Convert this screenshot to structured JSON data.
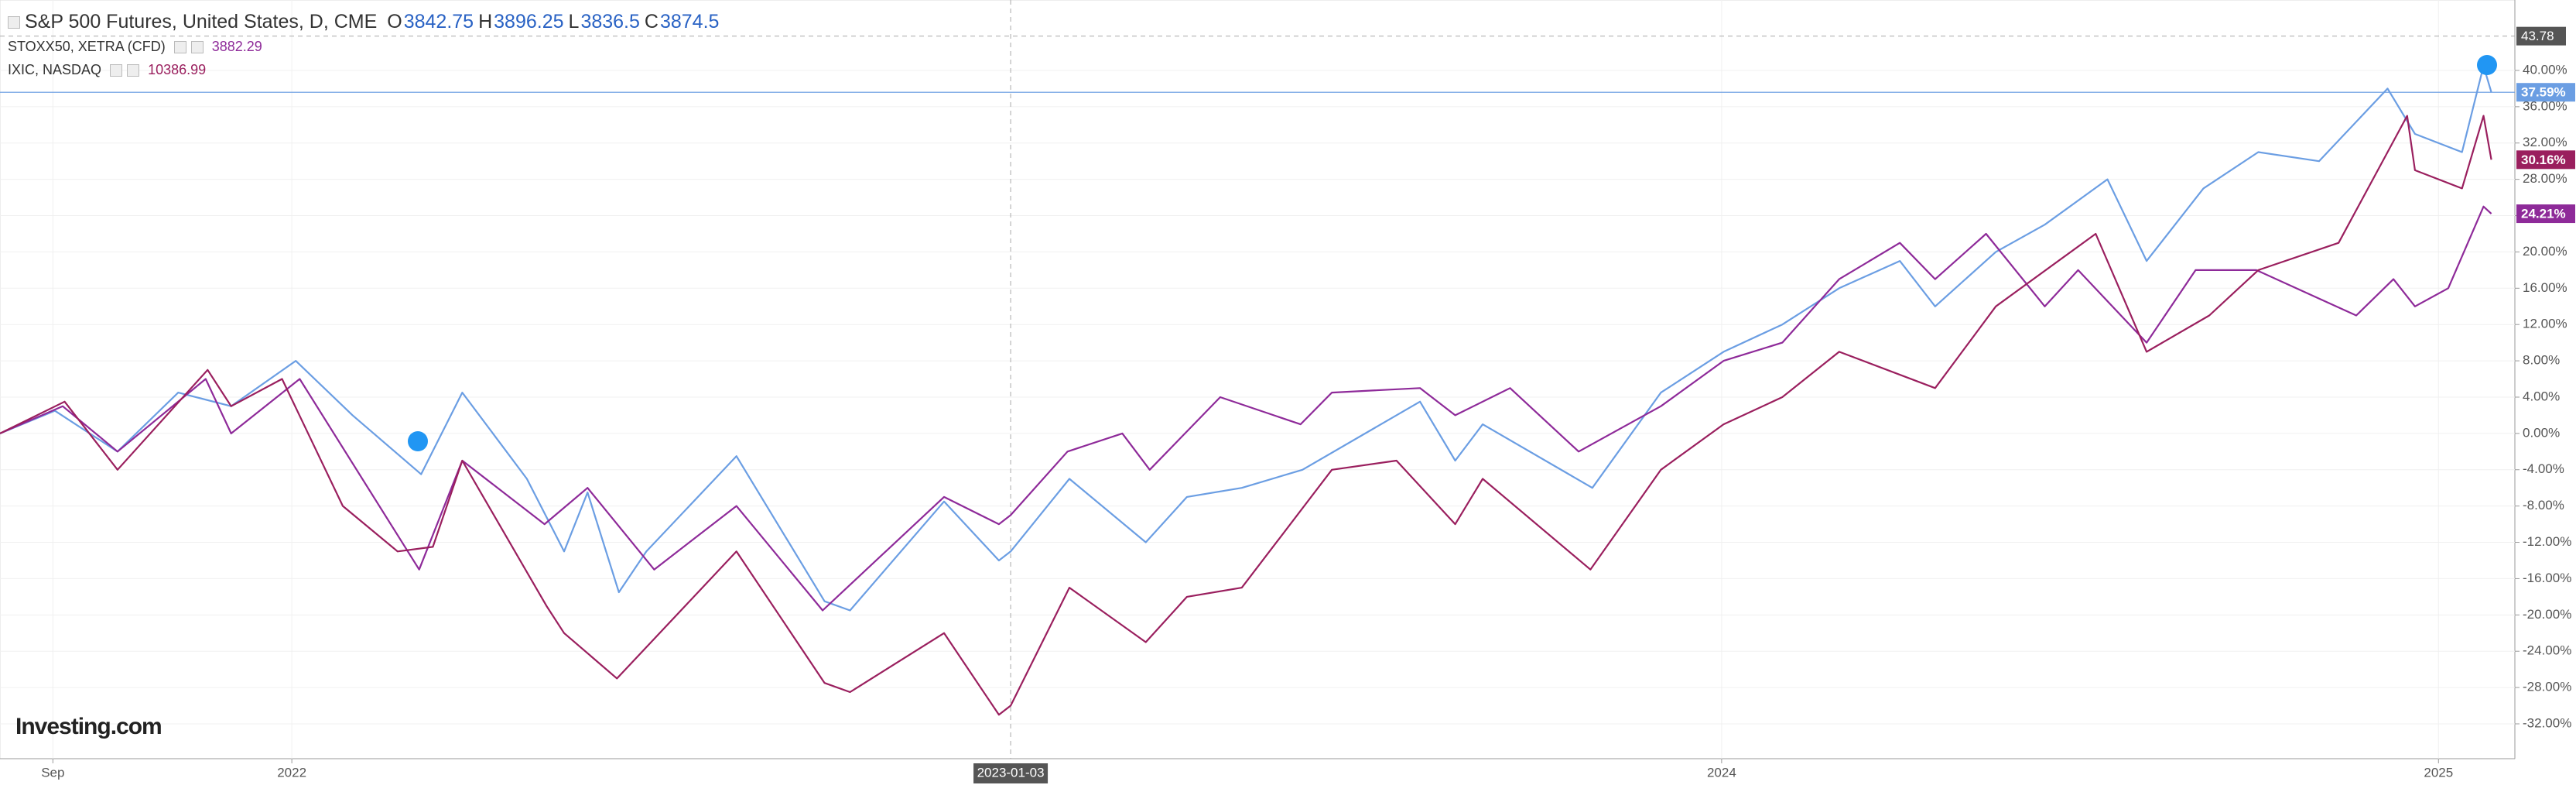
{
  "chart_data": {
    "type": "line",
    "series": [
      {
        "name": "S&P 500 Futures, United States, D, CME",
        "color": "#6b9ee3",
        "ohlc": [
          {
            "label": "O",
            "value": 3842.75
          },
          {
            "label": "H",
            "value": 3896.25
          },
          {
            "label": "L",
            "value": 3836.5
          },
          {
            "label": "C",
            "value": 3874.5
          }
        ],
        "end_label": "37.59%",
        "x": [
          "2021-08-05",
          "2021-09-02",
          "2021-10-04",
          "2021-11-04",
          "2021-12-01",
          "2022-01-03",
          "2022-02-01",
          "2022-03-08",
          "2022-03-29",
          "2022-05-01",
          "2022-05-20",
          "2022-06-01",
          "2022-06-17",
          "2022-07-01",
          "2022-08-16",
          "2022-09-30",
          "2022-10-13",
          "2022-11-30",
          "2022-12-28",
          "2023-01-03",
          "2023-02-02",
          "2023-03-13",
          "2023-04-03",
          "2023-05-01",
          "2023-06-01",
          "2023-07-31",
          "2023-08-18",
          "2023-09-01",
          "2023-10-27",
          "2023-12-01",
          "2024-01-02",
          "2024-02-01",
          "2024-03-01",
          "2024-04-01",
          "2024-04-19",
          "2024-05-20",
          "2024-06-14",
          "2024-07-16",
          "2024-08-05",
          "2024-09-03",
          "2024-10-01",
          "2024-11-01",
          "2024-12-06",
          "2024-12-20",
          "2025-01-13",
          "2025-01-24",
          "2025-01-28"
        ],
        "values": [
          0,
          2.5,
          -2,
          4.5,
          3,
          8,
          2,
          -4.5,
          4.5,
          -5,
          -13,
          -6.5,
          -17.5,
          -13,
          -2.5,
          -18.5,
          -19.5,
          -7.5,
          -14,
          -13,
          -5,
          -12,
          -7,
          -6,
          -4,
          3.5,
          -3,
          1,
          -6,
          4.5,
          9,
          12,
          16,
          19,
          14,
          20,
          23,
          28,
          19,
          27,
          31,
          30,
          38,
          33,
          31,
          40.5,
          37.59
        ]
      },
      {
        "name": "STOXX50, XETRA (CFD)",
        "color": "#8e2a99",
        "quote": 3882.29,
        "end_label": "24.21%",
        "x": [
          "2021-08-05",
          "2021-09-06",
          "2021-10-04",
          "2021-11-18",
          "2021-12-01",
          "2022-01-05",
          "2022-03-07",
          "2022-03-29",
          "2022-05-10",
          "2022-06-01",
          "2022-07-05",
          "2022-08-16",
          "2022-09-29",
          "2022-11-30",
          "2022-12-28",
          "2023-01-03",
          "2023-02-01",
          "2023-03-01",
          "2023-03-15",
          "2023-04-20",
          "2023-05-31",
          "2023-06-16",
          "2023-07-31",
          "2023-08-18",
          "2023-09-15",
          "2023-10-20",
          "2023-12-01",
          "2024-01-02",
          "2024-02-01",
          "2024-03-01",
          "2024-04-01",
          "2024-04-19",
          "2024-05-15",
          "2024-06-14",
          "2024-07-01",
          "2024-08-05",
          "2024-08-30",
          "2024-09-30",
          "2024-11-20",
          "2024-12-09",
          "2024-12-20",
          "2025-01-06",
          "2025-01-24",
          "2025-01-28"
        ],
        "values": [
          0,
          3,
          -2,
          6,
          0,
          6,
          -15,
          -3,
          -10,
          -6,
          -15,
          -8,
          -19.5,
          -7,
          -10,
          -9,
          -2,
          0,
          -4,
          4,
          1,
          4.5,
          5,
          2,
          5,
          -2,
          3,
          8,
          10,
          17,
          21,
          17,
          22,
          14,
          18,
          10,
          18,
          18,
          13,
          17,
          14,
          16,
          25,
          24.21
        ]
      },
      {
        "name": "IXIC, NASDAQ",
        "color": "#9a1f5e",
        "quote": 10386.99,
        "end_label": "30.16%",
        "x": [
          "2021-08-05",
          "2021-09-07",
          "2021-10-04",
          "2021-11-19",
          "2021-12-01",
          "2021-12-27",
          "2022-01-27",
          "2022-02-24",
          "2022-03-14",
          "2022-03-29",
          "2022-05-11",
          "2022-05-20",
          "2022-06-16",
          "2022-08-16",
          "2022-09-30",
          "2022-10-13",
          "2022-11-30",
          "2022-12-28",
          "2023-01-03",
          "2023-02-02",
          "2023-03-13",
          "2023-04-03",
          "2023-05-01",
          "2023-06-16",
          "2023-07-19",
          "2023-08-18",
          "2023-09-01",
          "2023-10-26",
          "2023-12-01",
          "2024-01-02",
          "2024-02-01",
          "2024-03-01",
          "2024-04-19",
          "2024-05-20",
          "2024-07-10",
          "2024-08-05",
          "2024-09-06",
          "2024-10-01",
          "2024-11-11",
          "2024-12-16",
          "2024-12-20",
          "2025-01-13",
          "2025-01-24",
          "2025-01-28"
        ],
        "values": [
          0,
          3.5,
          -4,
          7,
          3,
          6,
          -8,
          -13,
          -12.5,
          -3,
          -19,
          -22,
          -27,
          -13,
          -27.5,
          -28.5,
          -22,
          -31,
          -30,
          -17,
          -23,
          -18,
          -17,
          -4,
          -3,
          -10,
          -5,
          -15,
          -4,
          1,
          4,
          9,
          5,
          14,
          22,
          9,
          13,
          18,
          21,
          35,
          29,
          27,
          35,
          30.16
        ]
      }
    ],
    "xlim": [
      "2021-08-05",
      "2025-02-09"
    ],
    "xticks": [
      {
        "value": "2021-09-01",
        "label": "Sep"
      },
      {
        "value": "2022-01-01",
        "label": "2022"
      },
      {
        "value": "2024-01-01",
        "label": "2024"
      },
      {
        "value": "2025-01-01",
        "label": "2025"
      }
    ],
    "ylim": [
      -35.84,
      47.76
    ],
    "yticks": [
      {
        "value": -32,
        "label": "-32.00%"
      },
      {
        "value": -28,
        "label": "-28.00%"
      },
      {
        "value": -24,
        "label": "-24.00%"
      },
      {
        "value": -20,
        "label": "-20.00%"
      },
      {
        "value": -16,
        "label": "-16.00%"
      },
      {
        "value": -12,
        "label": "-12.00%"
      },
      {
        "value": -8,
        "label": "-8.00%"
      },
      {
        "value": -4,
        "label": "-4.00%"
      },
      {
        "value": 0,
        "label": "0.00%"
      },
      {
        "value": 4,
        "label": "4.00%"
      },
      {
        "value": 8,
        "label": "8.00%"
      },
      {
        "value": 12,
        "label": "12.00%"
      },
      {
        "value": 16,
        "label": "16.00%"
      },
      {
        "value": 20,
        "label": "20.00%"
      },
      {
        "value": 24,
        "label": "24.00%"
      },
      {
        "value": 28,
        "label": "28.00%"
      },
      {
        "value": 32,
        "label": "32.00%"
      },
      {
        "value": 36,
        "label": "36.00%"
      },
      {
        "value": 40,
        "label": "40.00%"
      }
    ],
    "grid": true,
    "crosshair": {
      "x": "2023-01-03",
      "y": 43.78
    },
    "logo": "Investing.com"
  }
}
